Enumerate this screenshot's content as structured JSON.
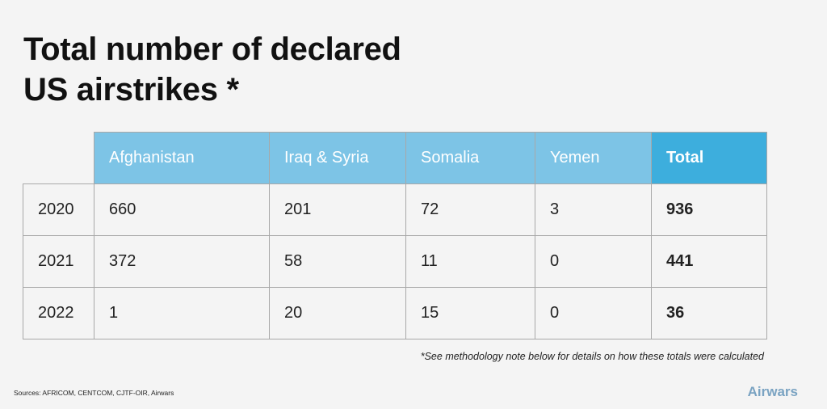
{
  "chart_data": {
    "type": "table",
    "title_lines": [
      "Total number of declared",
      "US airstrikes *"
    ],
    "columns": [
      "Afghanistan",
      "Iraq & Syria",
      "Somalia",
      "Yemen",
      "Total"
    ],
    "rows": [
      {
        "label": "2020",
        "values": [
          660,
          201,
          72,
          3,
          936
        ]
      },
      {
        "label": "2021",
        "values": [
          372,
          58,
          11,
          0,
          441
        ]
      },
      {
        "label": "2022",
        "values": [
          1,
          20,
          15,
          0,
          36
        ]
      }
    ],
    "header_colors": {
      "standard": "#7dc4e6",
      "total": "#3daedd"
    }
  },
  "footnote": "*See methodology note below for details on how these totals were calculated",
  "sources": "Sources: AFRICOM, CENTCOM, CJTF-OIR, Airwars",
  "logo": "Airwars"
}
